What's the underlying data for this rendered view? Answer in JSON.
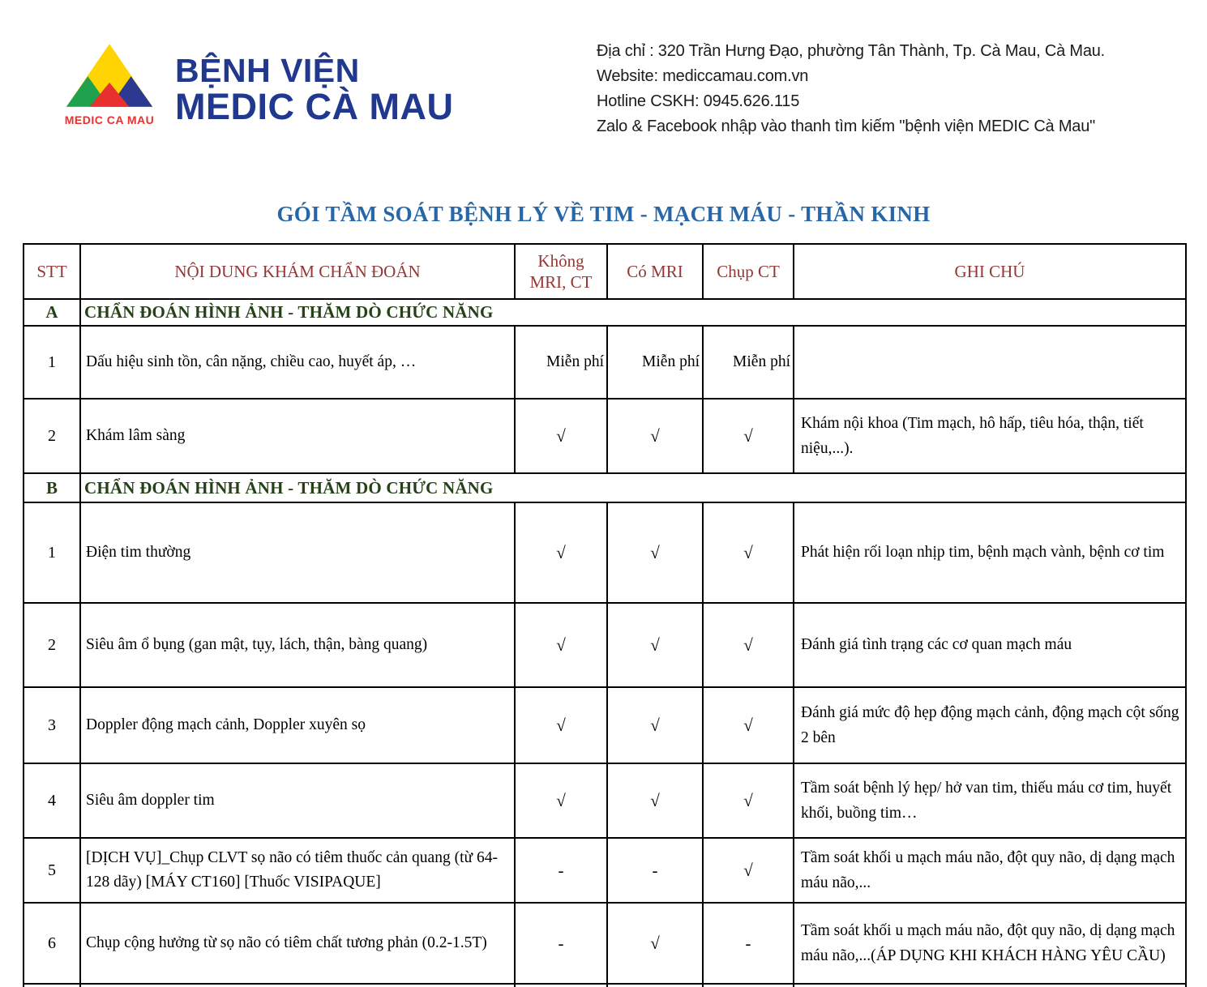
{
  "brand": {
    "name_line1": "BỆNH VIỆN",
    "name_line2": "MEDIC CÀ MAU",
    "logo_caption": "MEDIC CA MAU",
    "logo_colors": {
      "yellow": "#FFD400",
      "green": "#1FA14E",
      "red": "#E8312F",
      "blue": "#2B3990"
    }
  },
  "contact": {
    "address": "Địa chỉ : 320 Trần Hưng Đạo, phường  Tân Thành, Tp. Cà Mau, Cà Mau.",
    "website": "Website: mediccamau.com.vn",
    "hotline": "Hotline CSKH: 0945.626.115",
    "social": "Zalo & Facebook nhập vào thanh tìm kiếm \"bệnh viện MEDIC Cà Mau\""
  },
  "page_title": "GÓI TẦM SOÁT BỆNH LÝ VỀ TIM - MẠCH MÁU - THẦN KINH",
  "colors": {
    "title_blue": "#2767A8",
    "header_red": "#953735",
    "section_green": "#254117",
    "brand_navy": "#21388F",
    "border_black": "#000000"
  },
  "table": {
    "columns": [
      "STT",
      "NỘI DUNG KHÁM CHẨN ĐOÁN",
      "Không MRI, CT",
      "Có MRI",
      "Chụp CT",
      "GHI CHÚ"
    ],
    "check_glyph": "√",
    "dash_glyph": "-",
    "free_label": "Miễn phí",
    "rows": [
      {
        "type": "section",
        "no": "A",
        "label": "CHẨN ĐOÁN HÌNH ẢNH - THĂM DÒ CHỨC NĂNG"
      },
      {
        "type": "item",
        "no": "1",
        "content": "Dấu hiệu sinh tồn, cân nặng, chiều cao, huyết áp, …",
        "no_mri_ct": "Miễn phí",
        "co_mri": "Miễn phí",
        "chup_ct": "Miễn phí",
        "note": ""
      },
      {
        "type": "item",
        "no": "2",
        "content": "Khám lâm sàng",
        "no_mri_ct": "√",
        "co_mri": "√",
        "chup_ct": "√",
        "note": "Khám nội khoa (Tim mạch, hô hấp, tiêu hóa, thận, tiết niệu,...)."
      },
      {
        "type": "section",
        "no": "B",
        "label": "CHẨN ĐOÁN HÌNH ẢNH - THĂM DÒ CHỨC NĂNG"
      },
      {
        "type": "item",
        "no": "1",
        "content": "Điện tim thường",
        "no_mri_ct": "√",
        "co_mri": "√",
        "chup_ct": "√",
        "note": "Phát hiện rối loạn nhịp tim, bệnh mạch vành, bệnh cơ tim"
      },
      {
        "type": "item",
        "no": "2",
        "content": "Siêu âm ổ bụng (gan mật, tụy, lách, thận, bàng quang)",
        "no_mri_ct": "√",
        "co_mri": "√",
        "chup_ct": "√",
        "note": "Đánh giá tình trạng các cơ quan mạch máu"
      },
      {
        "type": "item",
        "no": "3",
        "content": "Doppler động mạch cảnh, Doppler xuyên sọ",
        "no_mri_ct": "√",
        "co_mri": "√",
        "chup_ct": "√",
        "note": "Đánh giá mức độ hẹp động mạch cảnh, động mạch cột sống 2 bên"
      },
      {
        "type": "item",
        "no": "4",
        "content": "Siêu âm doppler tim",
        "no_mri_ct": "√",
        "co_mri": "√",
        "chup_ct": "√",
        "note": "Tầm soát bệnh lý hẹp/ hở van tim, thiếu máu cơ tim, huyết khối, buồng tim…"
      },
      {
        "type": "item",
        "no": "5",
        "content": "[DỊCH VỤ]_Chụp CLVT sọ não có tiêm thuốc cản quang (từ 64-128 dãy) [MÁY CT160] [Thuốc VISIPAQUE]",
        "no_mri_ct": "-",
        "co_mri": "-",
        "chup_ct": "√",
        "note": "Tầm soát khối u mạch máu não, đột quy não, dị dạng mạch máu não,..."
      },
      {
        "type": "item",
        "no": "6",
        "content": "Chụp cộng hưởng từ sọ não có tiêm chất tương phản (0.2-1.5T)",
        "no_mri_ct": "-",
        "co_mri": "√",
        "chup_ct": "-",
        "note": "Tầm soát khối u mạch máu não, đột quy não, dị dạng mạch máu não,...(ÁP DỤNG KHI KHÁCH HÀNG YÊU CẦU)"
      }
    ]
  }
}
